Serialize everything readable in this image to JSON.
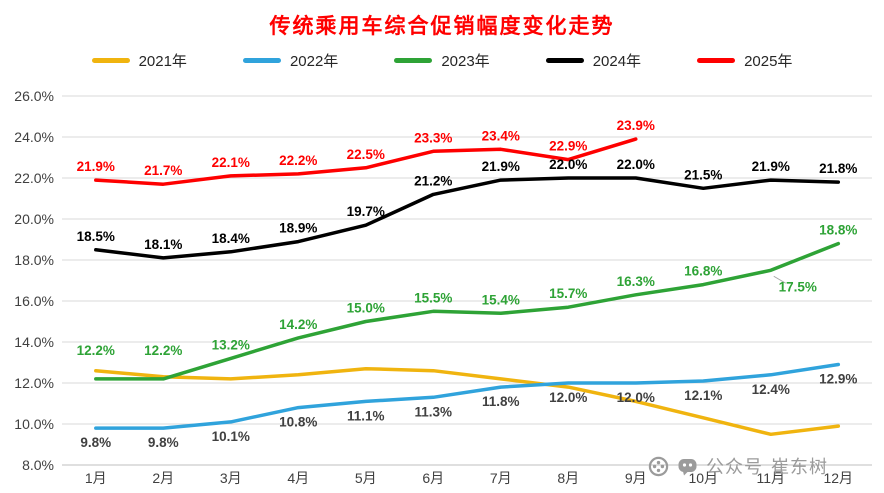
{
  "watermark": {
    "label_platform": "公众号",
    "label_author": "崔东树"
  },
  "chart_data": {
    "type": "line",
    "title": "传统乘用车综合促销幅度变化走势",
    "title_color": "#ff0000",
    "categories": [
      "1月",
      "2月",
      "3月",
      "4月",
      "5月",
      "6月",
      "7月",
      "8月",
      "9月",
      "10月",
      "11月",
      "12月"
    ],
    "ylim": [
      8,
      26
    ],
    "ytick_step": 2,
    "ytick_labels": [
      "8.0%",
      "10.0%",
      "12.0%",
      "14.0%",
      "16.0%",
      "18.0%",
      "20.0%",
      "22.0%",
      "24.0%",
      "26.0%"
    ],
    "grid": true,
    "legend_position": "top",
    "series": [
      {
        "name": "2021年",
        "color": "#F0B40F",
        "label_position": "above",
        "values": [
          12.6,
          12.3,
          12.2,
          12.4,
          12.7,
          12.6,
          12.2,
          11.8,
          11.1,
          10.3,
          9.5,
          9.9
        ],
        "data_labels": null
      },
      {
        "name": "2022年",
        "color": "#30A3DC",
        "label_color": "#404040",
        "label_position": "below",
        "values": [
          9.8,
          9.8,
          10.1,
          10.8,
          11.1,
          11.3,
          11.8,
          12.0,
          12.0,
          12.1,
          12.4,
          12.9
        ],
        "data_labels": [
          "9.8%",
          "9.8%",
          "10.1%",
          "10.8%",
          "11.1%",
          "11.3%",
          "11.8%",
          "12.0%",
          "12.0%",
          "12.1%",
          "12.4%",
          "12.9%"
        ]
      },
      {
        "name": "2023年",
        "color": "#2EA336",
        "label_position": "above",
        "values": [
          12.2,
          12.2,
          13.2,
          14.2,
          15.0,
          15.5,
          15.4,
          15.7,
          16.3,
          16.8,
          17.5,
          18.8
        ],
        "data_labels": [
          "12.2%",
          "12.2%",
          "13.2%",
          "14.2%",
          "15.0%",
          "15.5%",
          "15.4%",
          "15.7%",
          "16.3%",
          "16.8%",
          "17.5%",
          "18.8%"
        ]
      },
      {
        "name": "2024年",
        "color": "#000000",
        "label_position": "above",
        "values": [
          18.5,
          18.1,
          18.4,
          18.9,
          19.7,
          21.2,
          21.9,
          22.0,
          22.0,
          21.5,
          21.9,
          21.8
        ],
        "data_labels": [
          "18.5%",
          "18.1%",
          "18.4%",
          "18.9%",
          "19.7%",
          "21.2%",
          "21.9%",
          "22.0%",
          "22.0%",
          "21.5%",
          "21.9%",
          "21.8%"
        ]
      },
      {
        "name": "2025年",
        "color": "#FE0000",
        "label_position": "above",
        "values": [
          21.9,
          21.7,
          22.1,
          22.2,
          22.5,
          23.3,
          23.4,
          22.9,
          23.9,
          null,
          null,
          null
        ],
        "data_labels": [
          "21.9%",
          "21.7%",
          "22.1%",
          "22.2%",
          "22.5%",
          "23.3%",
          "23.4%",
          "22.9%",
          "23.9%",
          null,
          null,
          null
        ]
      }
    ]
  }
}
